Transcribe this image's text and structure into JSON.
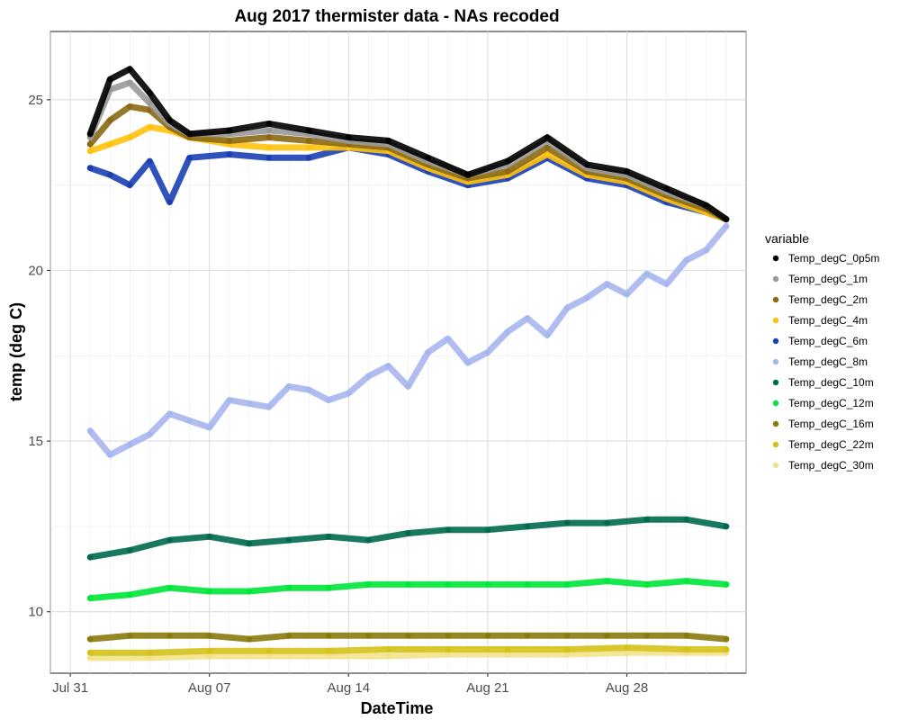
{
  "chart_data": {
    "type": "scatter",
    "title": "Aug 2017 thermister data - NAs recoded",
    "xlabel": "DateTime",
    "ylabel": "temp (deg C)",
    "xlim": [
      "2017-07-30",
      "2017-09-03"
    ],
    "ylim": [
      8.2,
      27.0
    ],
    "x_ticks": [
      {
        "date": "2017-07-31",
        "label": "Jul 31"
      },
      {
        "date": "2017-08-07",
        "label": "Aug 07"
      },
      {
        "date": "2017-08-14",
        "label": "Aug 14"
      },
      {
        "date": "2017-08-21",
        "label": "Aug 21"
      },
      {
        "date": "2017-08-28",
        "label": "Aug 28"
      }
    ],
    "y_ticks": [
      10,
      15,
      20,
      25
    ],
    "grid": true,
    "legend": {
      "title": "variable",
      "position": "right"
    },
    "series": [
      {
        "name": "Temp_degC_0p5m",
        "color": "#000000",
        "points": [
          [
            "2017-08-01",
            24.0
          ],
          [
            "2017-08-02",
            25.6
          ],
          [
            "2017-08-03",
            25.9
          ],
          [
            "2017-08-04",
            25.2
          ],
          [
            "2017-08-05",
            24.4
          ],
          [
            "2017-08-06",
            24.0
          ],
          [
            "2017-08-08",
            24.1
          ],
          [
            "2017-08-10",
            24.3
          ],
          [
            "2017-08-12",
            24.1
          ],
          [
            "2017-08-14",
            23.9
          ],
          [
            "2017-08-16",
            23.8
          ],
          [
            "2017-08-18",
            23.3
          ],
          [
            "2017-08-20",
            22.8
          ],
          [
            "2017-08-22",
            23.2
          ],
          [
            "2017-08-24",
            23.9
          ],
          [
            "2017-08-26",
            23.1
          ],
          [
            "2017-08-28",
            22.9
          ],
          [
            "2017-08-30",
            22.4
          ],
          [
            "2017-09-01",
            21.9
          ],
          [
            "2017-09-02",
            21.5
          ]
        ]
      },
      {
        "name": "Temp_degC_1m",
        "color": "#999999",
        "points": [
          [
            "2017-08-01",
            23.9
          ],
          [
            "2017-08-02",
            25.3
          ],
          [
            "2017-08-03",
            25.5
          ],
          [
            "2017-08-04",
            24.9
          ],
          [
            "2017-08-05",
            24.3
          ],
          [
            "2017-08-06",
            24.0
          ],
          [
            "2017-08-08",
            24.0
          ],
          [
            "2017-08-10",
            24.1
          ],
          [
            "2017-08-12",
            24.0
          ],
          [
            "2017-08-14",
            23.8
          ],
          [
            "2017-08-16",
            23.7
          ],
          [
            "2017-08-18",
            23.2
          ],
          [
            "2017-08-20",
            22.8
          ],
          [
            "2017-08-22",
            23.1
          ],
          [
            "2017-08-24",
            23.8
          ],
          [
            "2017-08-26",
            23.0
          ],
          [
            "2017-08-28",
            22.8
          ],
          [
            "2017-08-30",
            22.3
          ],
          [
            "2017-09-01",
            21.9
          ],
          [
            "2017-09-02",
            21.5
          ]
        ]
      },
      {
        "name": "Temp_degC_2m",
        "color": "#8B6914",
        "points": [
          [
            "2017-08-01",
            23.7
          ],
          [
            "2017-08-02",
            24.4
          ],
          [
            "2017-08-03",
            24.8
          ],
          [
            "2017-08-04",
            24.7
          ],
          [
            "2017-08-05",
            24.2
          ],
          [
            "2017-08-06",
            23.9
          ],
          [
            "2017-08-08",
            23.8
          ],
          [
            "2017-08-10",
            23.9
          ],
          [
            "2017-08-12",
            23.8
          ],
          [
            "2017-08-14",
            23.7
          ],
          [
            "2017-08-16",
            23.6
          ],
          [
            "2017-08-18",
            23.1
          ],
          [
            "2017-08-20",
            22.7
          ],
          [
            "2017-08-22",
            22.9
          ],
          [
            "2017-08-24",
            23.6
          ],
          [
            "2017-08-26",
            22.9
          ],
          [
            "2017-08-28",
            22.7
          ],
          [
            "2017-08-30",
            22.2
          ],
          [
            "2017-09-01",
            21.8
          ],
          [
            "2017-09-02",
            21.5
          ]
        ]
      },
      {
        "name": "Temp_degC_4m",
        "color": "#FFC20E",
        "points": [
          [
            "2017-08-01",
            23.5
          ],
          [
            "2017-08-02",
            23.7
          ],
          [
            "2017-08-03",
            23.9
          ],
          [
            "2017-08-04",
            24.2
          ],
          [
            "2017-08-05",
            24.1
          ],
          [
            "2017-08-06",
            23.9
          ],
          [
            "2017-08-08",
            23.7
          ],
          [
            "2017-08-10",
            23.6
          ],
          [
            "2017-08-12",
            23.6
          ],
          [
            "2017-08-14",
            23.6
          ],
          [
            "2017-08-16",
            23.5
          ],
          [
            "2017-08-18",
            23.0
          ],
          [
            "2017-08-20",
            22.6
          ],
          [
            "2017-08-22",
            22.8
          ],
          [
            "2017-08-24",
            23.4
          ],
          [
            "2017-08-26",
            22.8
          ],
          [
            "2017-08-28",
            22.6
          ],
          [
            "2017-08-30",
            22.1
          ],
          [
            "2017-09-01",
            21.7
          ],
          [
            "2017-09-02",
            21.5
          ]
        ]
      },
      {
        "name": "Temp_degC_6m",
        "color": "#1B3FB3",
        "points": [
          [
            "2017-08-01",
            23.0
          ],
          [
            "2017-08-02",
            22.8
          ],
          [
            "2017-08-03",
            22.5
          ],
          [
            "2017-08-04",
            23.2
          ],
          [
            "2017-08-05",
            22.0
          ],
          [
            "2017-08-06",
            23.3
          ],
          [
            "2017-08-08",
            23.4
          ],
          [
            "2017-08-10",
            23.3
          ],
          [
            "2017-08-12",
            23.3
          ],
          [
            "2017-08-14",
            23.6
          ],
          [
            "2017-08-16",
            23.4
          ],
          [
            "2017-08-18",
            22.9
          ],
          [
            "2017-08-20",
            22.5
          ],
          [
            "2017-08-22",
            22.7
          ],
          [
            "2017-08-24",
            23.3
          ],
          [
            "2017-08-26",
            22.7
          ],
          [
            "2017-08-28",
            22.5
          ],
          [
            "2017-08-30",
            22.0
          ],
          [
            "2017-09-01",
            21.7
          ],
          [
            "2017-09-02",
            21.5
          ]
        ]
      },
      {
        "name": "Temp_degC_8m",
        "color": "#A6B6EE",
        "points": [
          [
            "2017-08-01",
            15.3
          ],
          [
            "2017-08-02",
            14.6
          ],
          [
            "2017-08-03",
            14.9
          ],
          [
            "2017-08-04",
            15.2
          ],
          [
            "2017-08-05",
            15.8
          ],
          [
            "2017-08-06",
            15.6
          ],
          [
            "2017-08-07",
            15.4
          ],
          [
            "2017-08-08",
            16.2
          ],
          [
            "2017-08-09",
            16.1
          ],
          [
            "2017-08-10",
            16.0
          ],
          [
            "2017-08-11",
            16.6
          ],
          [
            "2017-08-12",
            16.5
          ],
          [
            "2017-08-13",
            16.2
          ],
          [
            "2017-08-14",
            16.4
          ],
          [
            "2017-08-15",
            16.9
          ],
          [
            "2017-08-16",
            17.2
          ],
          [
            "2017-08-17",
            16.6
          ],
          [
            "2017-08-18",
            17.6
          ],
          [
            "2017-08-19",
            18.0
          ],
          [
            "2017-08-20",
            17.3
          ],
          [
            "2017-08-21",
            17.6
          ],
          [
            "2017-08-22",
            18.2
          ],
          [
            "2017-08-23",
            18.6
          ],
          [
            "2017-08-24",
            18.1
          ],
          [
            "2017-08-25",
            18.9
          ],
          [
            "2017-08-26",
            19.2
          ],
          [
            "2017-08-27",
            19.6
          ],
          [
            "2017-08-28",
            19.3
          ],
          [
            "2017-08-29",
            19.9
          ],
          [
            "2017-08-30",
            19.6
          ],
          [
            "2017-08-31",
            20.3
          ],
          [
            "2017-09-01",
            20.6
          ],
          [
            "2017-09-02",
            21.3
          ]
        ]
      },
      {
        "name": "Temp_degC_10m",
        "color": "#006A4E",
        "points": [
          [
            "2017-08-01",
            11.6
          ],
          [
            "2017-08-03",
            11.8
          ],
          [
            "2017-08-05",
            12.1
          ],
          [
            "2017-08-07",
            12.2
          ],
          [
            "2017-08-09",
            12.0
          ],
          [
            "2017-08-11",
            12.1
          ],
          [
            "2017-08-13",
            12.2
          ],
          [
            "2017-08-15",
            12.1
          ],
          [
            "2017-08-17",
            12.3
          ],
          [
            "2017-08-19",
            12.4
          ],
          [
            "2017-08-21",
            12.4
          ],
          [
            "2017-08-23",
            12.5
          ],
          [
            "2017-08-25",
            12.6
          ],
          [
            "2017-08-27",
            12.6
          ],
          [
            "2017-08-29",
            12.7
          ],
          [
            "2017-08-31",
            12.7
          ],
          [
            "2017-09-02",
            12.5
          ]
        ]
      },
      {
        "name": "Temp_degC_12m",
        "color": "#00E639",
        "points": [
          [
            "2017-08-01",
            10.4
          ],
          [
            "2017-08-03",
            10.5
          ],
          [
            "2017-08-05",
            10.7
          ],
          [
            "2017-08-07",
            10.6
          ],
          [
            "2017-08-09",
            10.6
          ],
          [
            "2017-08-11",
            10.7
          ],
          [
            "2017-08-13",
            10.7
          ],
          [
            "2017-08-15",
            10.8
          ],
          [
            "2017-08-17",
            10.8
          ],
          [
            "2017-08-19",
            10.8
          ],
          [
            "2017-08-21",
            10.8
          ],
          [
            "2017-08-23",
            10.8
          ],
          [
            "2017-08-25",
            10.8
          ],
          [
            "2017-08-27",
            10.9
          ],
          [
            "2017-08-29",
            10.8
          ],
          [
            "2017-08-31",
            10.9
          ],
          [
            "2017-09-02",
            10.8
          ]
        ]
      },
      {
        "name": "Temp_degC_16m",
        "color": "#8A7A0E",
        "points": [
          [
            "2017-08-01",
            9.2
          ],
          [
            "2017-08-03",
            9.3
          ],
          [
            "2017-08-05",
            9.3
          ],
          [
            "2017-08-07",
            9.3
          ],
          [
            "2017-08-09",
            9.2
          ],
          [
            "2017-08-11",
            9.3
          ],
          [
            "2017-08-13",
            9.3
          ],
          [
            "2017-08-15",
            9.3
          ],
          [
            "2017-08-17",
            9.3
          ],
          [
            "2017-08-19",
            9.3
          ],
          [
            "2017-08-21",
            9.3
          ],
          [
            "2017-08-23",
            9.3
          ],
          [
            "2017-08-25",
            9.3
          ],
          [
            "2017-08-27",
            9.3
          ],
          [
            "2017-08-29",
            9.3
          ],
          [
            "2017-08-31",
            9.3
          ],
          [
            "2017-09-02",
            9.2
          ]
        ]
      },
      {
        "name": "Temp_degC_22m",
        "color": "#D4C21A",
        "points": [
          [
            "2017-08-01",
            8.8
          ],
          [
            "2017-08-04",
            8.8
          ],
          [
            "2017-08-07",
            8.85
          ],
          [
            "2017-08-10",
            8.85
          ],
          [
            "2017-08-13",
            8.85
          ],
          [
            "2017-08-16",
            8.9
          ],
          [
            "2017-08-19",
            8.9
          ],
          [
            "2017-08-22",
            8.9
          ],
          [
            "2017-08-25",
            8.9
          ],
          [
            "2017-08-28",
            8.95
          ],
          [
            "2017-08-31",
            8.9
          ],
          [
            "2017-09-02",
            8.9
          ]
        ]
      },
      {
        "name": "Temp_degC_30m",
        "color": "#F3E28C",
        "points": [
          [
            "2017-08-01",
            8.65
          ],
          [
            "2017-08-04",
            8.65
          ],
          [
            "2017-08-07",
            8.7
          ],
          [
            "2017-08-10",
            8.7
          ],
          [
            "2017-08-13",
            8.7
          ],
          [
            "2017-08-16",
            8.7
          ],
          [
            "2017-08-19",
            8.75
          ],
          [
            "2017-08-22",
            8.75
          ],
          [
            "2017-08-25",
            8.75
          ],
          [
            "2017-08-28",
            8.8
          ],
          [
            "2017-08-31",
            8.8
          ],
          [
            "2017-09-02",
            8.8
          ]
        ]
      }
    ]
  }
}
